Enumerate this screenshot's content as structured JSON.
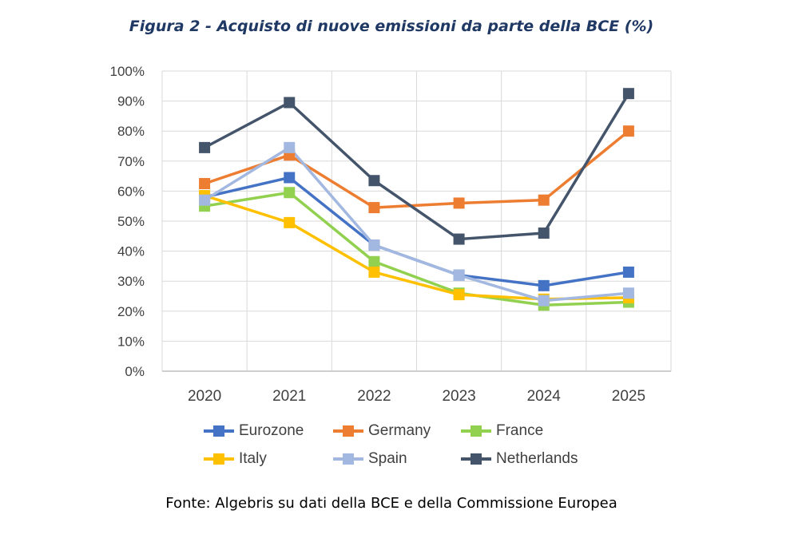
{
  "chart_data": {
    "type": "line",
    "title": "Figura 2 - Acquisto di nuove emissioni da parte della BCE (%)",
    "xlabel": "",
    "ylabel": "",
    "categories": [
      "2020",
      "2021",
      "2022",
      "2023",
      "2024",
      "2025"
    ],
    "ylim": [
      0,
      100
    ],
    "yticks": [
      "0%",
      "10%",
      "20%",
      "30%",
      "40%",
      "50%",
      "60%",
      "70%",
      "80%",
      "90%",
      "100%"
    ],
    "grid": true,
    "legend_position": "bottom",
    "series": [
      {
        "name": "Eurozone",
        "color": "#4472c4",
        "values": [
          58,
          64.5,
          42,
          32,
          28.5,
          33
        ]
      },
      {
        "name": "Germany",
        "color": "#ed7d31",
        "values": [
          62.5,
          72,
          54.5,
          56,
          57,
          80
        ]
      },
      {
        "name": "France",
        "color": "#92d050",
        "values": [
          55,
          59.5,
          36.5,
          26,
          22,
          23
        ]
      },
      {
        "name": "Italy",
        "color": "#ffc000",
        "values": [
          58.5,
          49.5,
          33,
          25.5,
          24,
          24.5
        ]
      },
      {
        "name": "Spain",
        "color": "#a3b8e0",
        "values": [
          57,
          74.5,
          42,
          32,
          23.5,
          26
        ]
      },
      {
        "name": "Netherlands",
        "color": "#44546a",
        "values": [
          74.5,
          89.5,
          63.5,
          44,
          46,
          92.5
        ]
      }
    ]
  },
  "footer": {
    "source": "Fonte: Algebris su dati della BCE e della Commissione Europea"
  }
}
